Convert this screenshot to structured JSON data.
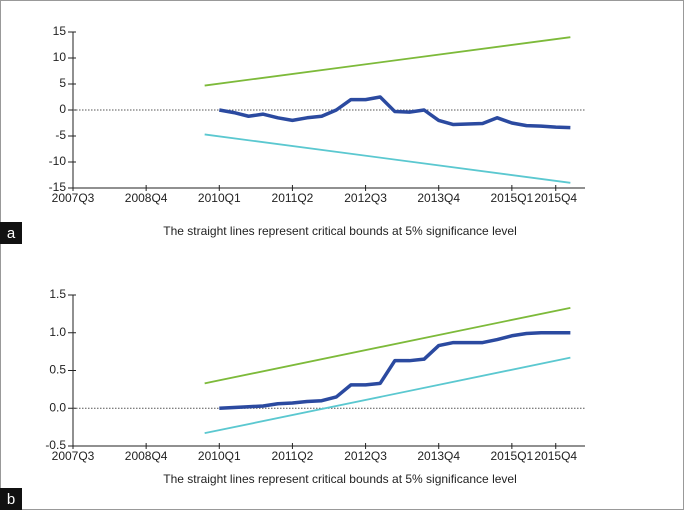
{
  "chart_data": [
    {
      "type": "line",
      "panel_label": "a",
      "note": "The straight lines represent critical bounds at 5% significance level",
      "xlim": [
        2007.5,
        2016.25
      ],
      "xticks": [
        {
          "value": 2007.5,
          "label": "2007Q3"
        },
        {
          "value": 2008.75,
          "label": "2008Q4"
        },
        {
          "value": 2010.0,
          "label": "2010Q1"
        },
        {
          "value": 2011.25,
          "label": "2011Q2"
        },
        {
          "value": 2012.5,
          "label": "2012Q3"
        },
        {
          "value": 2013.75,
          "label": "2013Q4"
        },
        {
          "value": 2015.0,
          "label": "2015Q1"
        },
        {
          "value": 2015.75,
          "label": "2015Q4"
        }
      ],
      "ylim": [
        -15,
        15
      ],
      "yticks": [
        -15,
        -10,
        -5,
        0,
        5,
        10,
        15
      ],
      "reference_line": 0,
      "series": [
        {
          "color": "#7dba3a",
          "x": [
            2009.75,
            2016.0
          ],
          "values": [
            4.7,
            14
          ]
        },
        {
          "color": "#5bc8d0",
          "x": [
            2009.75,
            2016.0
          ],
          "values": [
            -4.7,
            -14
          ]
        },
        {
          "color": "#2b4aa0",
          "x": [
            2010.0,
            2010.25,
            2010.5,
            2010.75,
            2011.0,
            2011.25,
            2011.5,
            2011.75,
            2012.0,
            2012.25,
            2012.5,
            2012.75,
            2013.0,
            2013.25,
            2013.5,
            2013.75,
            2014.0,
            2014.25,
            2014.5,
            2014.75,
            2015.0,
            2015.25,
            2015.5,
            2015.75,
            2016.0
          ],
          "values": [
            0,
            -0.5,
            -1.2,
            -0.8,
            -1.5,
            -2.0,
            -1.5,
            -1.2,
            0.0,
            2.0,
            2.0,
            2.5,
            -0.3,
            -0.4,
            0.0,
            -2.0,
            -2.8,
            -2.7,
            -2.6,
            -1.5,
            -2.5,
            -3.0,
            -3.1,
            -3.3,
            -3.4
          ]
        }
      ]
    },
    {
      "type": "line",
      "panel_label": "b",
      "note": "The straight lines represent critical bounds at 5% significance level",
      "xlim": [
        2007.5,
        2016.25
      ],
      "xticks": [
        {
          "value": 2007.5,
          "label": "2007Q3"
        },
        {
          "value": 2008.75,
          "label": "2008Q4"
        },
        {
          "value": 2010.0,
          "label": "2010Q1"
        },
        {
          "value": 2011.25,
          "label": "2011Q2"
        },
        {
          "value": 2012.5,
          "label": "2012Q3"
        },
        {
          "value": 2013.75,
          "label": "2013Q4"
        },
        {
          "value": 2015.0,
          "label": "2015Q1"
        },
        {
          "value": 2015.75,
          "label": "2015Q4"
        }
      ],
      "ylim": [
        -0.5,
        1.5
      ],
      "yticks": [
        {
          "value": -0.5,
          "label": "-0.5"
        },
        {
          "value": 0,
          "label": "0.0"
        },
        {
          "value": 0.5,
          "label": "0.5"
        },
        {
          "value": 1,
          "label": "1.0"
        },
        {
          "value": 1.5,
          "label": "1.5"
        }
      ],
      "reference_line": 0,
      "series": [
        {
          "color": "#7dba3a",
          "x": [
            2009.75,
            2016.0
          ],
          "values": [
            0.33,
            1.33
          ]
        },
        {
          "color": "#5bc8d0",
          "x": [
            2009.75,
            2016.0
          ],
          "values": [
            -0.33,
            0.67
          ]
        },
        {
          "color": "#2b4aa0",
          "x": [
            2010.0,
            2010.25,
            2010.5,
            2010.75,
            2011.0,
            2011.25,
            2011.5,
            2011.75,
            2012.0,
            2012.25,
            2012.5,
            2012.75,
            2013.0,
            2013.25,
            2013.5,
            2013.75,
            2014.0,
            2014.25,
            2014.5,
            2014.75,
            2015.0,
            2015.25,
            2015.5,
            2015.75,
            2016.0
          ],
          "values": [
            0,
            0.01,
            0.02,
            0.03,
            0.06,
            0.07,
            0.09,
            0.1,
            0.15,
            0.31,
            0.31,
            0.33,
            0.63,
            0.63,
            0.65,
            0.83,
            0.87,
            0.87,
            0.87,
            0.91,
            0.96,
            0.99,
            1.0,
            1.0,
            1.0
          ]
        }
      ]
    }
  ]
}
